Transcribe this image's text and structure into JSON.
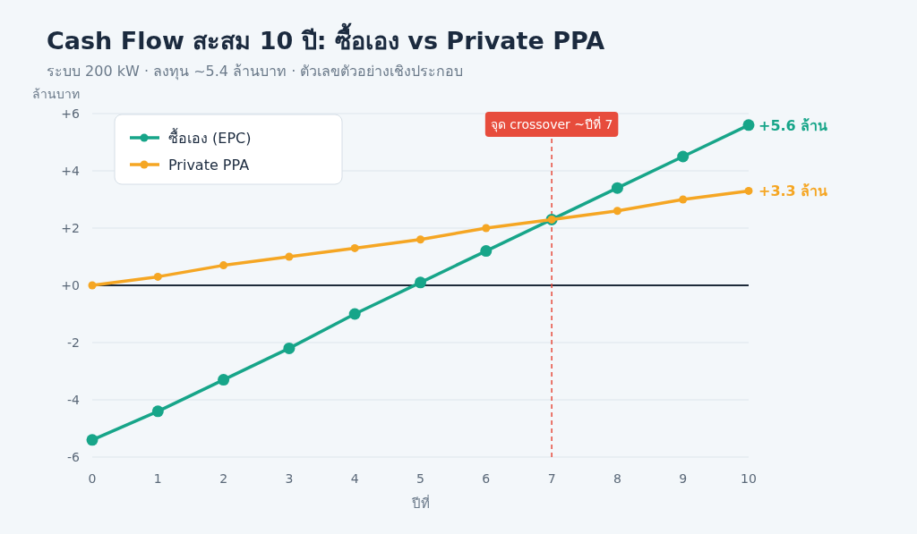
{
  "chart_data": {
    "type": "line",
    "title": "Cash Flow สะสม 10 ปี: ซื้อเอง vs Private PPA",
    "subtitle": "ระบบ 200 kW · ลงทุน ~5.4 ล้านบาท · ตัวเลขตัวอย่างเชิงประกอบ",
    "xlabel": "ปีที่",
    "ylabel": "ล้านบาท",
    "x": [
      0,
      1,
      2,
      3,
      4,
      5,
      6,
      7,
      8,
      9,
      10
    ],
    "series": [
      {
        "name": "ซื้อเอง (EPC)",
        "color": "#17a589",
        "values": [
          -5.4,
          -4.4,
          -3.3,
          -2.2,
          -1.0,
          0.1,
          1.2,
          2.3,
          3.4,
          4.5,
          5.6
        ]
      },
      {
        "name": "Private PPA",
        "color": "#f5a623",
        "values": [
          0,
          0.3,
          0.7,
          1.0,
          1.3,
          1.6,
          2.0,
          2.3,
          2.6,
          3.0,
          3.3
        ]
      }
    ],
    "xlim": [
      0,
      10
    ],
    "xticks": [
      0,
      1,
      2,
      3,
      4,
      5,
      6,
      7,
      8,
      9,
      10
    ],
    "ylim": [
      -6,
      6
    ],
    "yticks": [
      {
        "value": -6,
        "label": "-6"
      },
      {
        "value": -4,
        "label": "-4"
      },
      {
        "value": -2,
        "label": "-2"
      },
      {
        "value": 0,
        "label": "+0"
      },
      {
        "value": 2,
        "label": "+2"
      },
      {
        "value": 4,
        "label": "+4"
      },
      {
        "value": 6,
        "label": "+6"
      }
    ],
    "ref_lines": [
      {
        "axis": "y",
        "value": 0,
        "label": null,
        "color": "#1e2b3a",
        "line_style": "solid"
      },
      {
        "axis": "x",
        "value": 7,
        "label": "จุด crossover ~ปีที่ 7",
        "color": "#e74c3c",
        "line_style": "dashed"
      }
    ],
    "annotations": [
      {
        "text": "+5.6 ล้าน",
        "x": 10,
        "y": 5.6
      },
      {
        "text": "+3.3 ล้าน",
        "x": 10,
        "y": 3.3
      }
    ],
    "grid": "y",
    "legend": "top left",
    "marker": "circle",
    "line_style": "solid"
  }
}
